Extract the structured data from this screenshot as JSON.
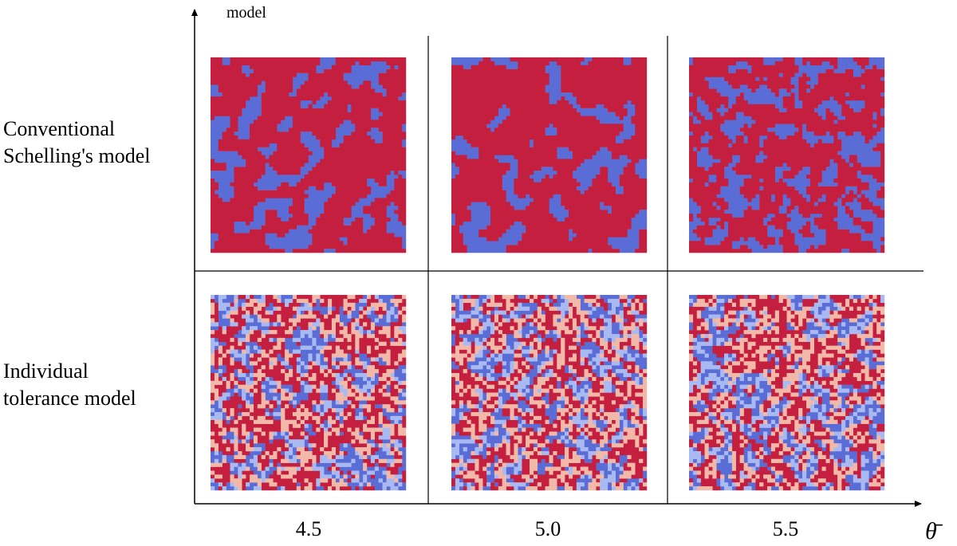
{
  "axis": {
    "y_label": "model",
    "x_label": "θ̄"
  },
  "row_labels": [
    [
      "Conventional",
      "Schelling's model"
    ],
    [
      "Individual",
      "tolerance model"
    ]
  ],
  "column_labels": [
    "4.5",
    "5.0",
    "5.5"
  ]
}
